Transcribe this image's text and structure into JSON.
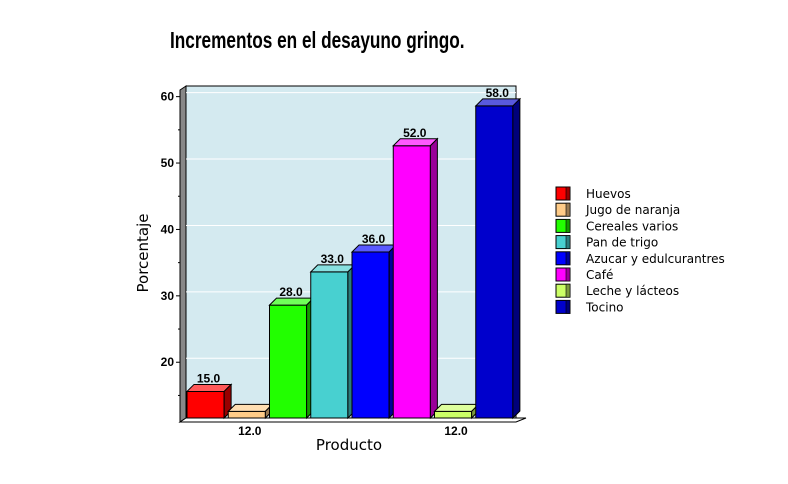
{
  "chart_data": {
    "type": "bar",
    "title": "Incrementos en el desayuno gringo.",
    "xlabel": "Producto",
    "ylabel": "Porcentaje",
    "ylim": [
      11,
      61
    ],
    "yticks": [
      20,
      30,
      40,
      50,
      60
    ],
    "categories": [
      "Huevos",
      "Jugo de naranja",
      "Cereales varios",
      "Pan de trigo",
      "Azucar y edulcurantres",
      "Café",
      "Leche y lácteos",
      "Tocino"
    ],
    "values": [
      15.0,
      12.0,
      28.0,
      33.0,
      36.0,
      52.0,
      12.0,
      58.0
    ],
    "data_labels": [
      "15.0",
      "12.0",
      "28.0",
      "33.0",
      "36.0",
      "52.0",
      "12.0",
      "58.0"
    ],
    "colors": [
      "#ff0000",
      "#ffcc88",
      "#22ff00",
      "#48d0d0",
      "#0000ff",
      "#ff00ff",
      "#ccff66",
      "#0000cc"
    ],
    "plot_background": "#d4eaf0",
    "grid": true,
    "legend_position": "right"
  }
}
